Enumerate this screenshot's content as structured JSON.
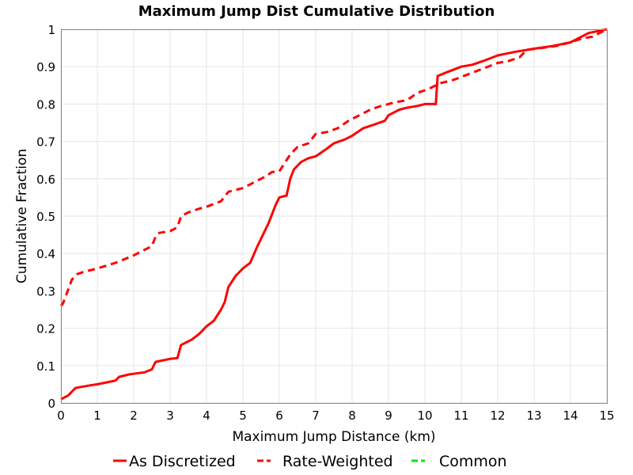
{
  "colors": {
    "as_discretized": "#ff0000",
    "rate_weighted": "#ff0000",
    "common": "#00ee00",
    "grid": "#e6e6e6",
    "axis": "#000000"
  },
  "chart_data": {
    "type": "line",
    "title": "Maximum Jump Dist Cumulative Distribution",
    "xlabel": "Maximum Jump Distance (km)",
    "ylabel": "Cumulative Fraction",
    "xlim": [
      0,
      15
    ],
    "ylim": [
      0,
      1
    ],
    "xticks": [
      "0",
      "1",
      "2",
      "3",
      "4",
      "5",
      "6",
      "7",
      "8",
      "9",
      "10",
      "11",
      "12",
      "13",
      "14",
      "15"
    ],
    "yticks": [
      "0",
      "0.1",
      "0.2",
      "0.3",
      "0.4",
      "0.5",
      "0.6",
      "0.7",
      "0.8",
      "0.9",
      "1"
    ],
    "grid": true,
    "legend_position": "bottom",
    "series": [
      {
        "name": "As Discretized",
        "style": "solid",
        "color": "#ff0000",
        "x": [
          0,
          0.2,
          0.4,
          0.5,
          0.8,
          1.0,
          1.3,
          1.5,
          1.6,
          1.9,
          2.3,
          2.5,
          2.6,
          3.0,
          3.2,
          3.3,
          3.6,
          3.8,
          4.0,
          4.2,
          4.4,
          4.5,
          4.6,
          4.8,
          5.0,
          5.2,
          5.4,
          5.5,
          5.7,
          5.9,
          6.0,
          6.2,
          6.3,
          6.4,
          6.6,
          6.8,
          7.0,
          7.3,
          7.5,
          7.8,
          8.0,
          8.3,
          8.6,
          8.9,
          9.0,
          9.3,
          9.5,
          9.8,
          10.0,
          10.3,
          10.35,
          10.6,
          11.0,
          11.3,
          11.6,
          12.0,
          12.5,
          13.0,
          13.5,
          14.0,
          14.5,
          15.0
        ],
        "y": [
          0.01,
          0.02,
          0.04,
          0.042,
          0.047,
          0.05,
          0.056,
          0.06,
          0.07,
          0.077,
          0.082,
          0.09,
          0.11,
          0.118,
          0.12,
          0.155,
          0.17,
          0.185,
          0.205,
          0.22,
          0.25,
          0.27,
          0.31,
          0.34,
          0.36,
          0.375,
          0.42,
          0.44,
          0.48,
          0.53,
          0.55,
          0.555,
          0.6,
          0.625,
          0.645,
          0.655,
          0.66,
          0.68,
          0.695,
          0.705,
          0.715,
          0.735,
          0.745,
          0.755,
          0.77,
          0.785,
          0.79,
          0.795,
          0.8,
          0.8,
          0.875,
          0.885,
          0.9,
          0.905,
          0.915,
          0.93,
          0.94,
          0.948,
          0.955,
          0.965,
          0.99,
          1.0
        ]
      },
      {
        "name": "Rate-Weighted",
        "style": "dashed",
        "color": "#ff0000",
        "x": [
          0,
          0.05,
          0.15,
          0.3,
          0.45,
          0.6,
          1.0,
          1.5,
          2.0,
          2.5,
          2.6,
          2.7,
          3.0,
          3.2,
          3.3,
          3.5,
          3.8,
          4.0,
          4.4,
          4.6,
          5.0,
          5.3,
          5.6,
          5.8,
          6.0,
          6.3,
          6.5,
          6.8,
          7.0,
          7.3,
          7.6,
          7.9,
          8.2,
          8.5,
          8.8,
          9.2,
          9.5,
          9.8,
          10.1,
          10.4,
          10.8,
          11.2,
          11.6,
          12.0,
          12.3,
          12.6,
          12.8,
          13.2,
          13.6,
          14.0,
          14.3,
          14.6,
          15.0
        ],
        "y": [
          0.26,
          0.265,
          0.29,
          0.33,
          0.345,
          0.35,
          0.36,
          0.375,
          0.395,
          0.42,
          0.445,
          0.455,
          0.46,
          0.47,
          0.5,
          0.51,
          0.52,
          0.525,
          0.54,
          0.565,
          0.575,
          0.59,
          0.605,
          0.618,
          0.62,
          0.665,
          0.685,
          0.695,
          0.72,
          0.725,
          0.735,
          0.755,
          0.77,
          0.785,
          0.795,
          0.805,
          0.81,
          0.83,
          0.84,
          0.855,
          0.865,
          0.88,
          0.895,
          0.91,
          0.915,
          0.925,
          0.945,
          0.95,
          0.955,
          0.965,
          0.975,
          0.98,
          1.0
        ]
      },
      {
        "name": "Common",
        "style": "dashed",
        "color": "#00ee00",
        "x": [],
        "y": []
      }
    ]
  }
}
